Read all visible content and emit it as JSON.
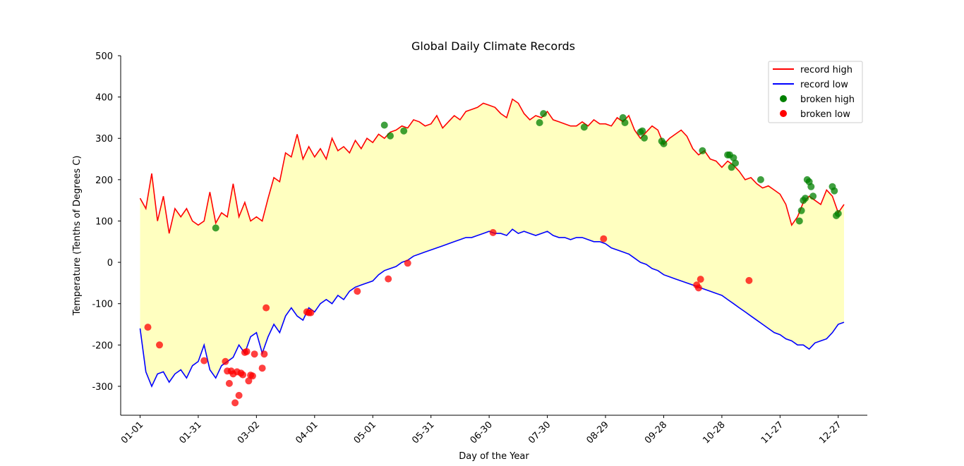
{
  "chart_data": {
    "type": "line",
    "title": "Global Daily Climate Records",
    "xlabel": "Day of the Year",
    "ylabel": "Temperature (Tenths of Degrees C)",
    "ylim": [
      -370,
      500
    ],
    "xlim": [
      -10,
      375
    ],
    "y_ticks": [
      -300,
      -200,
      -100,
      0,
      100,
      200,
      300,
      400,
      500
    ],
    "x_ticks": [
      {
        "day": 0,
        "label": "01-01"
      },
      {
        "day": 30,
        "label": "01-31"
      },
      {
        "day": 60,
        "label": "03-02"
      },
      {
        "day": 90,
        "label": "04-01"
      },
      {
        "day": 120,
        "label": "05-01"
      },
      {
        "day": 150,
        "label": "05-31"
      },
      {
        "day": 180,
        "label": "06-30"
      },
      {
        "day": 210,
        "label": "07-30"
      },
      {
        "day": 240,
        "label": "08-29"
      },
      {
        "day": 270,
        "label": "09-28"
      },
      {
        "day": 300,
        "label": "10-28"
      },
      {
        "day": 330,
        "label": "11-27"
      },
      {
        "day": 360,
        "label": "12-27"
      }
    ],
    "fill_between": {
      "color": "#ffffc0",
      "series": [
        "record high",
        "record low"
      ]
    },
    "legend_position": "top-right",
    "series": [
      {
        "name": "record high",
        "kind": "line",
        "color": "#ff0000",
        "x": [
          0,
          3,
          6,
          9,
          12,
          15,
          18,
          21,
          24,
          27,
          30,
          33,
          36,
          39,
          42,
          45,
          48,
          51,
          54,
          57,
          60,
          63,
          66,
          69,
          72,
          75,
          78,
          81,
          84,
          87,
          90,
          93,
          96,
          99,
          102,
          105,
          108,
          111,
          114,
          117,
          120,
          123,
          126,
          129,
          132,
          135,
          138,
          141,
          144,
          147,
          150,
          153,
          156,
          159,
          162,
          165,
          168,
          171,
          174,
          177,
          180,
          183,
          186,
          189,
          192,
          195,
          198,
          201,
          204,
          207,
          210,
          213,
          216,
          219,
          222,
          225,
          228,
          231,
          234,
          237,
          240,
          243,
          246,
          249,
          252,
          255,
          258,
          261,
          264,
          267,
          270,
          273,
          276,
          279,
          282,
          285,
          288,
          291,
          294,
          297,
          300,
          303,
          306,
          309,
          312,
          315,
          318,
          321,
          324,
          327,
          330,
          333,
          336,
          339,
          342,
          345,
          348,
          351,
          354,
          357,
          360,
          363
        ],
        "values": [
          155,
          130,
          215,
          100,
          160,
          70,
          130,
          110,
          130,
          100,
          90,
          100,
          170,
          95,
          120,
          110,
          190,
          110,
          145,
          100,
          110,
          100,
          155,
          205,
          195,
          265,
          255,
          310,
          250,
          280,
          255,
          275,
          250,
          300,
          270,
          280,
          265,
          295,
          275,
          300,
          290,
          310,
          300,
          315,
          320,
          330,
          325,
          345,
          340,
          330,
          335,
          355,
          325,
          340,
          355,
          345,
          365,
          370,
          375,
          385,
          380,
          375,
          360,
          350,
          395,
          385,
          360,
          345,
          355,
          350,
          365,
          345,
          340,
          335,
          330,
          330,
          340,
          330,
          345,
          335,
          335,
          330,
          350,
          340,
          355,
          320,
          300,
          315,
          330,
          320,
          285,
          300,
          310,
          320,
          305,
          275,
          260,
          270,
          250,
          245,
          230,
          245,
          235,
          220,
          200,
          205,
          190,
          180,
          185,
          175,
          165,
          140,
          90,
          110,
          145,
          160,
          150,
          140,
          175,
          160,
          120,
          140
        ]
      },
      {
        "name": "record low",
        "kind": "line",
        "color": "#0000ff",
        "x": [
          0,
          3,
          6,
          9,
          12,
          15,
          18,
          21,
          24,
          27,
          30,
          33,
          36,
          39,
          42,
          45,
          48,
          51,
          54,
          57,
          60,
          63,
          66,
          69,
          72,
          75,
          78,
          81,
          84,
          87,
          90,
          93,
          96,
          99,
          102,
          105,
          108,
          111,
          114,
          117,
          120,
          123,
          126,
          129,
          132,
          135,
          138,
          141,
          144,
          147,
          150,
          153,
          156,
          159,
          162,
          165,
          168,
          171,
          174,
          177,
          180,
          183,
          186,
          189,
          192,
          195,
          198,
          201,
          204,
          207,
          210,
          213,
          216,
          219,
          222,
          225,
          228,
          231,
          234,
          237,
          240,
          243,
          246,
          249,
          252,
          255,
          258,
          261,
          264,
          267,
          270,
          273,
          276,
          279,
          282,
          285,
          288,
          291,
          294,
          297,
          300,
          303,
          306,
          309,
          312,
          315,
          318,
          321,
          324,
          327,
          330,
          333,
          336,
          339,
          342,
          345,
          348,
          351,
          354,
          357,
          360,
          363
        ],
        "values": [
          -160,
          -265,
          -300,
          -270,
          -265,
          -290,
          -270,
          -260,
          -280,
          -250,
          -240,
          -200,
          -260,
          -280,
          -250,
          -240,
          -230,
          -200,
          -220,
          -180,
          -170,
          -220,
          -180,
          -150,
          -170,
          -130,
          -110,
          -130,
          -140,
          -110,
          -120,
          -100,
          -90,
          -100,
          -80,
          -90,
          -70,
          -60,
          -55,
          -50,
          -45,
          -30,
          -20,
          -15,
          -10,
          0,
          5,
          15,
          20,
          25,
          30,
          35,
          40,
          45,
          50,
          55,
          60,
          60,
          65,
          70,
          75,
          70,
          70,
          65,
          80,
          70,
          75,
          70,
          65,
          70,
          75,
          65,
          60,
          60,
          55,
          60,
          60,
          55,
          50,
          50,
          45,
          35,
          30,
          25,
          20,
          10,
          0,
          -5,
          -15,
          -20,
          -30,
          -35,
          -40,
          -45,
          -50,
          -55,
          -60,
          -65,
          -70,
          -75,
          -80,
          -90,
          -100,
          -110,
          -120,
          -130,
          -140,
          -150,
          -160,
          -170,
          -175,
          -185,
          -190,
          -200,
          -200,
          -210,
          -195,
          -190,
          -185,
          -170,
          -150,
          -145
        ]
      },
      {
        "name": "broken high",
        "kind": "scatter",
        "color": "#008000",
        "x": [
          39,
          126,
          129,
          136,
          206,
          208,
          229,
          249,
          250,
          258,
          259,
          260,
          269,
          270,
          290,
          303,
          304,
          305,
          306,
          307,
          320,
          340,
          341,
          342,
          343,
          344,
          345,
          346,
          347,
          357,
          358,
          359,
          360
        ],
        "values": [
          83,
          332,
          306,
          318,
          338,
          360,
          327,
          350,
          338,
          315,
          318,
          301,
          293,
          287,
          270,
          260,
          260,
          230,
          253,
          240,
          200,
          100,
          125,
          150,
          155,
          200,
          195,
          183,
          160,
          183,
          173,
          113,
          118
        ]
      },
      {
        "name": "broken low",
        "kind": "scatter",
        "color": "#ff0000",
        "x": [
          4,
          10,
          33,
          44,
          45,
          46,
          47,
          48,
          49,
          50,
          51,
          52,
          53,
          54,
          55,
          56,
          57,
          58,
          59,
          63,
          64,
          65,
          86,
          87,
          88,
          112,
          128,
          138,
          182,
          239,
          287,
          288,
          289,
          314
        ],
        "values": [
          -157,
          -200,
          -238,
          -240,
          -263,
          -293,
          -263,
          -270,
          -340,
          -265,
          -322,
          -268,
          -272,
          -218,
          -216,
          -287,
          -273,
          -275,
          -222,
          -256,
          -222,
          -110,
          -120,
          -122,
          -122,
          -70,
          -40,
          -2,
          72,
          57,
          -55,
          -62,
          -41,
          -44
        ]
      }
    ]
  }
}
